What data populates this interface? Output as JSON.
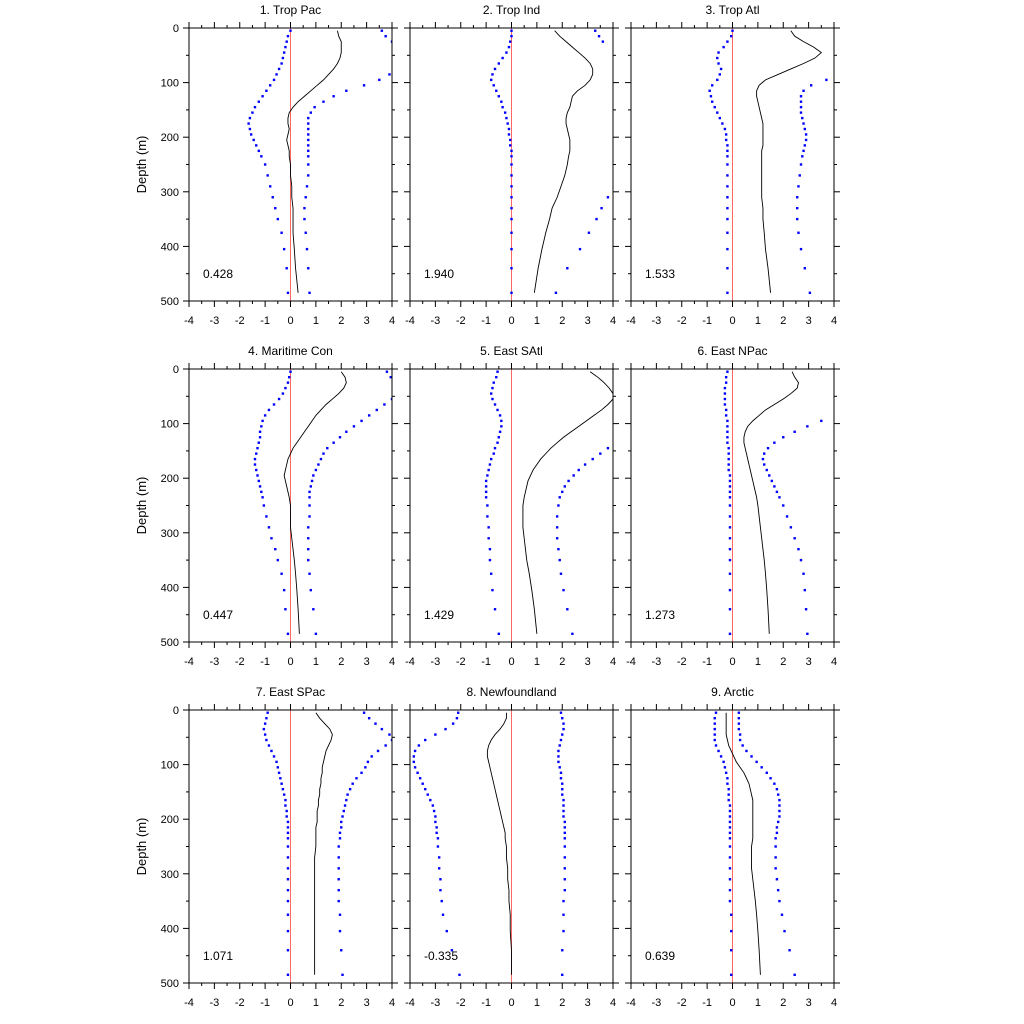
{
  "chart_data": {
    "type": "line",
    "layout": "3x3 panel grid",
    "ylabel": "Depth (m)",
    "xlim": [
      -4,
      4
    ],
    "ylim": [
      0,
      500
    ],
    "y_inverted": true,
    "x_ticks": [
      -4,
      -3,
      -2,
      -1,
      0,
      1,
      2,
      3,
      4
    ],
    "y_ticks": [
      0,
      100,
      200,
      300,
      400,
      500
    ],
    "zero_line_color": "#ff6666",
    "mean_line_color": "#000000",
    "bound_dot_color": "#0000ff",
    "depths": [
      5,
      15,
      25,
      35,
      45,
      55,
      65,
      75,
      85,
      95,
      105,
      115,
      125,
      135,
      145,
      155,
      165,
      175,
      185,
      195,
      205,
      215,
      225,
      235,
      250,
      270,
      290,
      310,
      330,
      350,
      375,
      405,
      440,
      485
    ],
    "panels": [
      {
        "title": "1. Trop Pac",
        "value_label": "0.428",
        "mean": [
          1.85,
          1.9,
          2.0,
          2.0,
          2.0,
          1.95,
          1.85,
          1.7,
          1.5,
          1.3,
          1.05,
          0.8,
          0.55,
          0.3,
          0.1,
          -0.05,
          -0.1,
          -0.1,
          -0.05,
          -0.1,
          -0.15,
          -0.1,
          -0.05,
          -0.05,
          0.0,
          0.0,
          0.05,
          0.05,
          0.1,
          0.1,
          0.1,
          0.15,
          0.2,
          0.3
        ],
        "lower": [
          0.0,
          -0.1,
          -0.15,
          -0.2,
          -0.25,
          -0.3,
          -0.35,
          -0.45,
          -0.55,
          -0.65,
          -0.8,
          -0.95,
          -1.1,
          -1.25,
          -1.4,
          -1.5,
          -1.6,
          -1.65,
          -1.6,
          -1.55,
          -1.45,
          -1.35,
          -1.25,
          -1.15,
          -1.0,
          -0.9,
          -0.8,
          -0.7,
          -0.6,
          -0.5,
          -0.35,
          -0.25,
          -0.15,
          -0.1
        ],
        "upper": [
          3.6,
          3.75,
          4.0,
          null,
          null,
          null,
          null,
          null,
          3.9,
          3.5,
          2.9,
          2.2,
          1.7,
          1.3,
          0.95,
          0.8,
          0.7,
          0.7,
          0.7,
          0.7,
          0.7,
          0.7,
          0.7,
          0.7,
          0.7,
          0.7,
          0.65,
          0.6,
          0.55,
          0.55,
          0.6,
          0.65,
          0.7,
          0.75
        ]
      },
      {
        "title": "2. Trop Ind",
        "value_label": "1.940",
        "mean": [
          1.7,
          1.9,
          2.15,
          2.4,
          2.65,
          2.9,
          3.1,
          3.2,
          3.2,
          3.1,
          2.9,
          2.6,
          2.4,
          2.35,
          2.3,
          2.2,
          2.15,
          2.15,
          2.2,
          2.25,
          2.3,
          2.3,
          2.3,
          2.25,
          2.2,
          2.1,
          1.95,
          1.8,
          1.6,
          1.5,
          1.35,
          1.2,
          1.05,
          0.9
        ],
        "lower": [
          0.0,
          0.0,
          -0.05,
          -0.1,
          -0.2,
          -0.35,
          -0.5,
          -0.65,
          -0.75,
          -0.8,
          -0.7,
          -0.6,
          -0.5,
          -0.4,
          -0.35,
          -0.25,
          -0.2,
          -0.15,
          -0.1,
          -0.1,
          -0.05,
          -0.05,
          0.0,
          0.0,
          0.0,
          0.0,
          0.0,
          0.0,
          0.0,
          0.0,
          0.0,
          0.0,
          0.0,
          0.0
        ],
        "upper": [
          3.3,
          3.45,
          3.6,
          null,
          null,
          null,
          null,
          null,
          null,
          null,
          null,
          null,
          null,
          null,
          null,
          null,
          null,
          null,
          null,
          null,
          null,
          null,
          null,
          null,
          null,
          null,
          null,
          3.8,
          3.55,
          3.35,
          3.05,
          2.7,
          2.2,
          1.75
        ]
      },
      {
        "title": "3. Trop Atl",
        "value_label": "1.533",
        "mean": [
          2.3,
          2.45,
          2.8,
          3.2,
          3.5,
          3.25,
          2.8,
          2.3,
          1.8,
          1.3,
          1.05,
          0.95,
          0.95,
          1.0,
          1.05,
          1.1,
          1.15,
          1.2,
          1.2,
          1.2,
          1.2,
          1.2,
          1.15,
          1.15,
          1.15,
          1.15,
          1.15,
          1.15,
          1.2,
          1.2,
          1.25,
          1.3,
          1.4,
          1.5
        ],
        "lower": [
          0.0,
          -0.05,
          -0.2,
          -0.35,
          -0.55,
          -0.6,
          -0.55,
          -0.45,
          -0.5,
          -0.6,
          -0.8,
          -0.9,
          -0.85,
          -0.8,
          -0.7,
          -0.6,
          -0.5,
          -0.4,
          -0.3,
          -0.25,
          -0.25,
          -0.2,
          -0.2,
          -0.2,
          -0.2,
          -0.2,
          -0.2,
          -0.2,
          -0.2,
          -0.2,
          -0.2,
          -0.2,
          -0.2,
          -0.2
        ],
        "upper": [
          null,
          null,
          null,
          null,
          null,
          null,
          null,
          null,
          null,
          3.7,
          3.1,
          2.8,
          2.7,
          2.7,
          2.7,
          2.7,
          2.75,
          2.8,
          2.85,
          2.9,
          2.9,
          2.85,
          2.8,
          2.75,
          2.7,
          2.65,
          2.6,
          2.55,
          2.55,
          2.55,
          2.6,
          2.7,
          2.85,
          3.05
        ]
      },
      {
        "title": "4. Maritime Con",
        "value_label": "0.447",
        "mean": [
          2.0,
          2.15,
          2.2,
          2.1,
          1.9,
          1.65,
          1.4,
          1.2,
          1.0,
          0.85,
          0.7,
          0.55,
          0.4,
          0.25,
          0.1,
          0.0,
          -0.1,
          -0.15,
          -0.2,
          -0.25,
          -0.2,
          -0.15,
          -0.1,
          -0.05,
          0.0,
          0.0,
          0.0,
          0.05,
          0.1,
          0.15,
          0.2,
          0.25,
          0.3,
          0.35
        ],
        "lower": [
          0.0,
          -0.05,
          -0.1,
          -0.2,
          -0.3,
          -0.45,
          -0.65,
          -0.85,
          -1.0,
          -1.1,
          -1.15,
          -1.2,
          -1.2,
          -1.25,
          -1.3,
          -1.35,
          -1.4,
          -1.4,
          -1.35,
          -1.3,
          -1.25,
          -1.2,
          -1.15,
          -1.1,
          -1.05,
          -0.95,
          -0.85,
          -0.75,
          -0.6,
          -0.5,
          -0.35,
          -0.25,
          -0.2,
          -0.1
        ],
        "upper": [
          3.8,
          3.95,
          null,
          null,
          null,
          4.0,
          3.7,
          3.4,
          3.1,
          2.8,
          2.5,
          2.2,
          1.95,
          1.7,
          1.45,
          1.3,
          1.2,
          1.1,
          1.0,
          0.9,
          0.85,
          0.8,
          0.75,
          0.75,
          0.75,
          0.75,
          0.7,
          0.7,
          0.7,
          0.7,
          0.75,
          0.8,
          0.9,
          1.0
        ]
      },
      {
        "title": "5. East SAtl",
        "value_label": "1.429",
        "mean": [
          3.1,
          3.4,
          3.65,
          3.85,
          4.0,
          4.0,
          3.8,
          3.55,
          3.25,
          2.95,
          2.65,
          2.35,
          2.05,
          1.8,
          1.55,
          1.35,
          1.15,
          1.0,
          0.85,
          0.75,
          0.65,
          0.6,
          0.55,
          0.5,
          0.45,
          0.45,
          0.45,
          0.5,
          0.55,
          0.6,
          0.7,
          0.8,
          0.9,
          1.0
        ],
        "lower": [
          -0.55,
          -0.6,
          -0.7,
          -0.75,
          -0.8,
          -0.75,
          -0.65,
          -0.55,
          -0.45,
          -0.4,
          -0.4,
          -0.45,
          -0.5,
          -0.55,
          -0.65,
          -0.7,
          -0.8,
          -0.85,
          -0.9,
          -0.95,
          -1.0,
          -1.0,
          -1.0,
          -1.0,
          -0.95,
          -0.95,
          -0.9,
          -0.9,
          -0.85,
          -0.85,
          -0.8,
          -0.75,
          -0.65,
          -0.5
        ],
        "upper": [
          null,
          null,
          null,
          null,
          null,
          null,
          null,
          null,
          null,
          null,
          null,
          null,
          null,
          null,
          3.8,
          3.5,
          3.2,
          2.9,
          2.65,
          2.45,
          2.25,
          2.1,
          2.0,
          1.9,
          1.85,
          1.8,
          1.8,
          1.8,
          1.85,
          1.9,
          1.95,
          2.05,
          2.2,
          2.4
        ]
      },
      {
        "title": "6. East NPac",
        "value_label": "1.273",
        "mean": [
          2.35,
          2.45,
          2.6,
          2.55,
          2.3,
          2.0,
          1.65,
          1.3,
          1.05,
          0.8,
          0.6,
          0.5,
          0.45,
          0.45,
          0.5,
          0.55,
          0.6,
          0.65,
          0.7,
          0.75,
          0.8,
          0.85,
          0.9,
          0.95,
          1.0,
          1.05,
          1.1,
          1.15,
          1.2,
          1.25,
          1.3,
          1.35,
          1.4,
          1.45
        ],
        "lower": [
          -0.2,
          -0.25,
          -0.25,
          -0.3,
          -0.3,
          -0.3,
          -0.3,
          -0.25,
          -0.25,
          -0.2,
          -0.2,
          -0.2,
          -0.2,
          -0.2,
          -0.15,
          -0.15,
          -0.15,
          -0.15,
          -0.15,
          -0.1,
          -0.1,
          -0.1,
          -0.1,
          -0.1,
          -0.1,
          -0.1,
          -0.1,
          -0.1,
          -0.1,
          -0.1,
          -0.1,
          -0.1,
          -0.1,
          -0.1
        ],
        "upper": [
          null,
          null,
          null,
          null,
          null,
          null,
          null,
          null,
          null,
          3.5,
          2.95,
          2.45,
          2.0,
          1.65,
          1.4,
          1.25,
          1.2,
          1.25,
          1.35,
          1.45,
          1.55,
          1.65,
          1.75,
          1.85,
          2.0,
          2.15,
          2.3,
          2.45,
          2.6,
          2.7,
          2.8,
          2.85,
          2.9,
          2.95
        ]
      },
      {
        "title": "7. East SPac",
        "value_label": "1.071",
        "mean": [
          1.0,
          1.15,
          1.35,
          1.55,
          1.65,
          1.6,
          1.5,
          1.4,
          1.35,
          1.3,
          1.25,
          1.25,
          1.2,
          1.2,
          1.15,
          1.15,
          1.1,
          1.1,
          1.05,
          1.05,
          1.05,
          1.0,
          1.0,
          1.0,
          1.0,
          0.95,
          0.95,
          0.95,
          0.95,
          0.95,
          0.95,
          0.95,
          0.95,
          0.95
        ],
        "lower": [
          -0.9,
          -0.95,
          -1.0,
          -1.05,
          -1.0,
          -0.95,
          -0.85,
          -0.75,
          -0.65,
          -0.55,
          -0.5,
          -0.45,
          -0.4,
          -0.35,
          -0.3,
          -0.25,
          -0.2,
          -0.2,
          -0.15,
          -0.15,
          -0.1,
          -0.1,
          -0.1,
          -0.1,
          -0.1,
          -0.1,
          -0.1,
          -0.1,
          -0.1,
          -0.1,
          -0.1,
          -0.1,
          -0.1,
          -0.1
        ],
        "upper": [
          2.9,
          3.1,
          3.35,
          3.6,
          3.9,
          4.0,
          3.75,
          3.45,
          3.2,
          3.05,
          2.95,
          2.8,
          2.6,
          2.45,
          2.35,
          2.25,
          2.2,
          2.15,
          2.1,
          2.05,
          2.0,
          2.0,
          1.95,
          1.95,
          1.9,
          1.9,
          1.9,
          1.9,
          1.9,
          1.9,
          1.95,
          1.95,
          2.0,
          2.05
        ]
      },
      {
        "title": "8. Newfoundland",
        "value_label": "-0.335",
        "mean": [
          -0.2,
          -0.2,
          -0.3,
          -0.45,
          -0.65,
          -0.8,
          -0.9,
          -0.95,
          -0.95,
          -0.9,
          -0.85,
          -0.8,
          -0.75,
          -0.7,
          -0.65,
          -0.6,
          -0.55,
          -0.5,
          -0.45,
          -0.4,
          -0.35,
          -0.3,
          -0.25,
          -0.25,
          -0.2,
          -0.2,
          -0.15,
          -0.15,
          -0.1,
          -0.1,
          -0.05,
          -0.05,
          0.0,
          0.0
        ],
        "lower": [
          -2.1,
          -2.15,
          -2.3,
          -2.6,
          -3.0,
          -3.4,
          -3.65,
          -3.8,
          -3.85,
          -3.85,
          -3.8,
          -3.7,
          -3.6,
          -3.5,
          -3.4,
          -3.3,
          -3.2,
          -3.1,
          -3.05,
          -3.0,
          -3.0,
          -2.95,
          -2.95,
          -2.9,
          -2.9,
          -2.85,
          -2.85,
          -2.8,
          -2.8,
          -2.75,
          -2.7,
          -2.55,
          -2.35,
          -2.05
        ],
        "upper": [
          1.95,
          2.0,
          2.05,
          2.05,
          2.0,
          1.95,
          1.9,
          1.85,
          1.85,
          1.85,
          1.9,
          1.95,
          1.95,
          2.0,
          2.0,
          2.0,
          2.05,
          2.05,
          2.05,
          2.05,
          2.1,
          2.1,
          2.1,
          2.1,
          2.1,
          2.1,
          2.1,
          2.1,
          2.1,
          2.05,
          2.05,
          2.05,
          2.0,
          2.0
        ],
        "value_label_x": -3.6
      },
      {
        "title": "9. Arctic",
        "value_label": "0.639",
        "mean": [
          -0.25,
          -0.25,
          -0.25,
          -0.25,
          -0.25,
          -0.2,
          -0.15,
          -0.05,
          0.05,
          0.15,
          0.3,
          0.45,
          0.55,
          0.65,
          0.7,
          0.75,
          0.8,
          0.8,
          0.8,
          0.8,
          0.8,
          0.8,
          0.8,
          0.8,
          0.75,
          0.75,
          0.75,
          0.8,
          0.85,
          0.9,
          0.95,
          1.0,
          1.05,
          1.1
        ],
        "lower": [
          -0.65,
          -0.7,
          -0.7,
          -0.7,
          -0.7,
          -0.7,
          -0.65,
          -0.55,
          -0.45,
          -0.35,
          -0.3,
          -0.25,
          -0.2,
          -0.2,
          -0.15,
          -0.15,
          -0.15,
          -0.1,
          -0.1,
          -0.1,
          -0.1,
          -0.1,
          -0.1,
          -0.1,
          -0.1,
          -0.1,
          -0.1,
          -0.1,
          -0.1,
          -0.1,
          -0.05,
          -0.05,
          -0.05,
          -0.05
        ],
        "upper": [
          0.25,
          0.25,
          0.25,
          0.25,
          0.3,
          0.3,
          0.4,
          0.55,
          0.75,
          0.95,
          1.15,
          1.35,
          1.5,
          1.65,
          1.75,
          1.8,
          1.85,
          1.85,
          1.85,
          1.85,
          1.8,
          1.75,
          1.75,
          1.7,
          1.7,
          1.7,
          1.7,
          1.75,
          1.8,
          1.85,
          1.95,
          2.05,
          2.25,
          2.45
        ]
      }
    ]
  }
}
